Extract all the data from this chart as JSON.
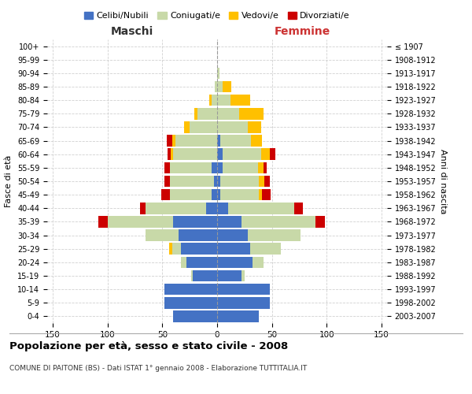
{
  "age_groups": [
    "0-4",
    "5-9",
    "10-14",
    "15-19",
    "20-24",
    "25-29",
    "30-34",
    "35-39",
    "40-44",
    "45-49",
    "50-54",
    "55-59",
    "60-64",
    "65-69",
    "70-74",
    "75-79",
    "80-84",
    "85-89",
    "90-94",
    "95-99",
    "100+"
  ],
  "birth_years": [
    "2003-2007",
    "1998-2002",
    "1993-1997",
    "1988-1992",
    "1983-1987",
    "1978-1982",
    "1973-1977",
    "1968-1972",
    "1963-1967",
    "1958-1962",
    "1953-1957",
    "1948-1952",
    "1943-1947",
    "1938-1942",
    "1933-1937",
    "1928-1932",
    "1923-1927",
    "1918-1922",
    "1913-1917",
    "1908-1912",
    "≤ 1907"
  ],
  "male": {
    "celibi": [
      40,
      48,
      48,
      22,
      28,
      33,
      35,
      40,
      10,
      5,
      3,
      5,
      0,
      0,
      0,
      0,
      0,
      0,
      0,
      0,
      0
    ],
    "coniugati": [
      0,
      0,
      0,
      2,
      5,
      8,
      30,
      60,
      55,
      38,
      40,
      38,
      40,
      38,
      25,
      18,
      5,
      2,
      0,
      0,
      0
    ],
    "vedovi": [
      0,
      0,
      0,
      0,
      0,
      3,
      0,
      0,
      0,
      0,
      0,
      0,
      2,
      3,
      5,
      3,
      2,
      0,
      0,
      0,
      0
    ],
    "divorziati": [
      0,
      0,
      0,
      0,
      0,
      0,
      0,
      8,
      5,
      8,
      5,
      5,
      3,
      5,
      0,
      0,
      0,
      0,
      0,
      0,
      0
    ]
  },
  "female": {
    "nubili": [
      38,
      48,
      48,
      22,
      32,
      30,
      28,
      22,
      10,
      3,
      3,
      5,
      5,
      3,
      0,
      0,
      0,
      0,
      0,
      0,
      0
    ],
    "coniugate": [
      0,
      0,
      0,
      3,
      10,
      28,
      48,
      68,
      60,
      35,
      35,
      32,
      35,
      28,
      28,
      20,
      12,
      5,
      2,
      0,
      0
    ],
    "vedove": [
      0,
      0,
      0,
      0,
      0,
      0,
      0,
      0,
      0,
      3,
      5,
      5,
      8,
      10,
      12,
      22,
      18,
      8,
      0,
      0,
      0
    ],
    "divorziate": [
      0,
      0,
      0,
      0,
      0,
      0,
      0,
      8,
      8,
      8,
      5,
      3,
      5,
      0,
      0,
      0,
      0,
      0,
      0,
      0,
      0
    ]
  },
  "colors": {
    "celibi": "#4472c4",
    "coniugati": "#c8d9a8",
    "vedovi": "#ffc000",
    "divorziati": "#cc0000"
  },
  "title": "Popolazione per età, sesso e stato civile - 2008",
  "subtitle": "COMUNE DI PAITONE (BS) - Dati ISTAT 1° gennaio 2008 - Elaborazione TUTTITALIA.IT",
  "xlabel_left": "Maschi",
  "xlabel_right": "Femmine",
  "ylabel_left": "Fasce di età",
  "ylabel_right": "Anni di nascita",
  "xlim": 155,
  "bg_color": "#ffffff",
  "grid_color": "#cccccc",
  "legend_labels": [
    "Celibi/Nubili",
    "Coniugati/e",
    "Vedovi/e",
    "Divorziati/e"
  ]
}
